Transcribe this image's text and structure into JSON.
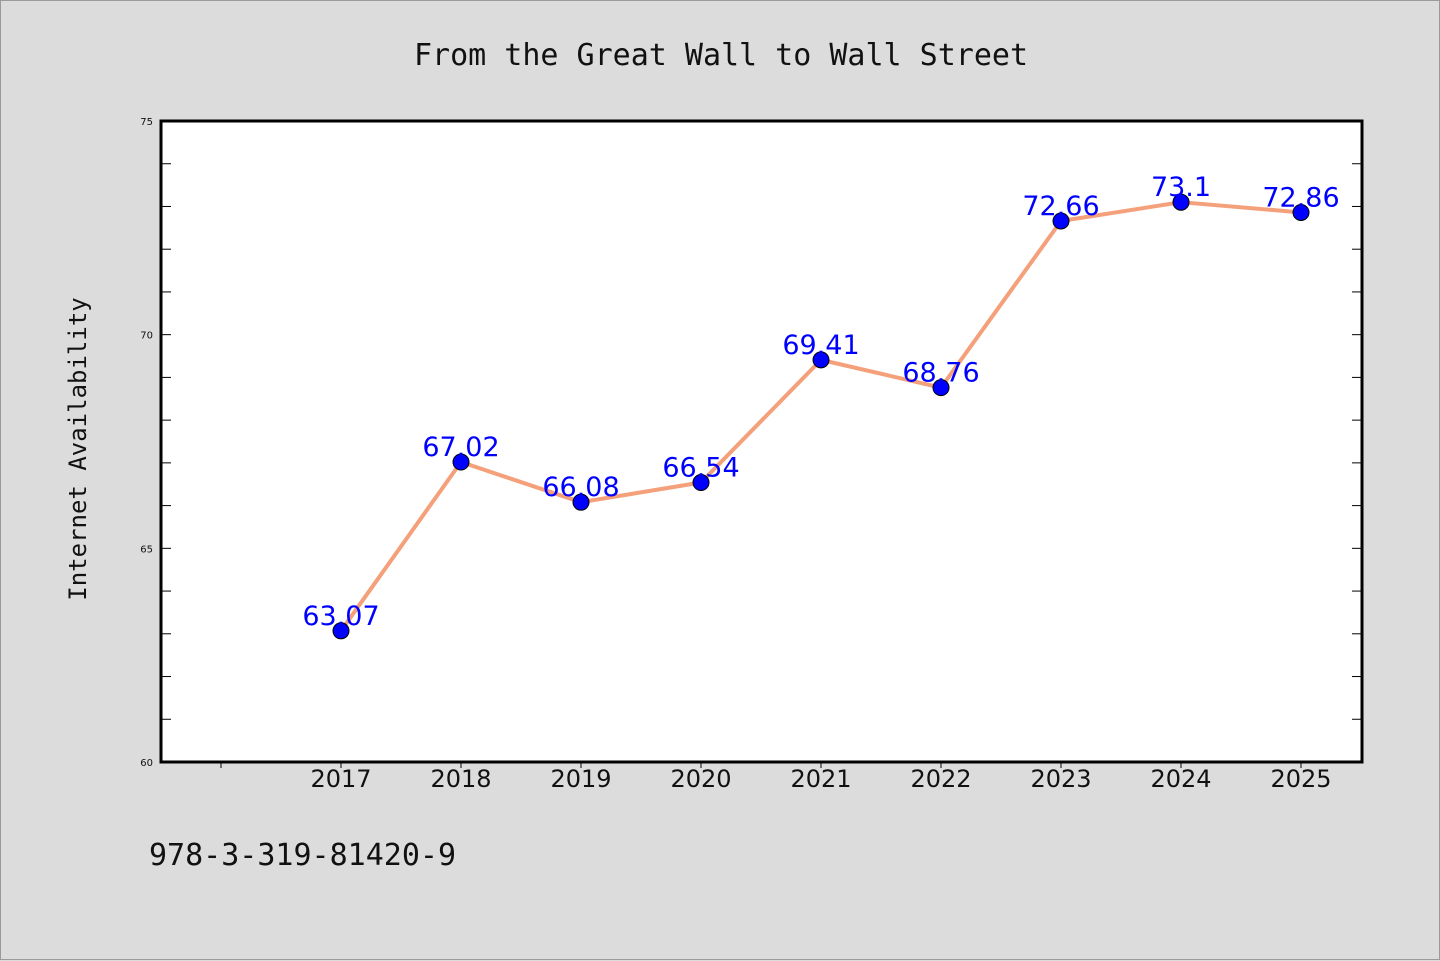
{
  "chart_data": {
    "type": "line",
    "title": "From the Great Wall to Wall Street",
    "xlabel": "",
    "ylabel": "Internet Availability",
    "categories": [
      "2017",
      "2018",
      "2019",
      "2020",
      "2021",
      "2022",
      "2023",
      "2024",
      "2025"
    ],
    "series": [
      {
        "values": [
          63.07,
          67.02,
          66.08,
          66.54,
          69.41,
          68.76,
          72.66,
          73.1,
          72.86
        ],
        "labels": [
          "63.07",
          "67.02",
          "66.08",
          "66.54",
          "69.41",
          "68.76",
          "72.66",
          "73.1",
          "72.86"
        ],
        "line_color": "#f4a07a",
        "marker_color": "#0000ff"
      }
    ],
    "ylim": [
      60,
      75
    ],
    "y_major_ticks": [
      "60",
      "65",
      "70",
      "75"
    ],
    "grid": false,
    "legend": "none"
  },
  "footer_text": "978-3-319-81420-9",
  "colors": {
    "background": "#dcdcdc",
    "plot_background": "#ffffff",
    "label_color": "#0000ff"
  }
}
